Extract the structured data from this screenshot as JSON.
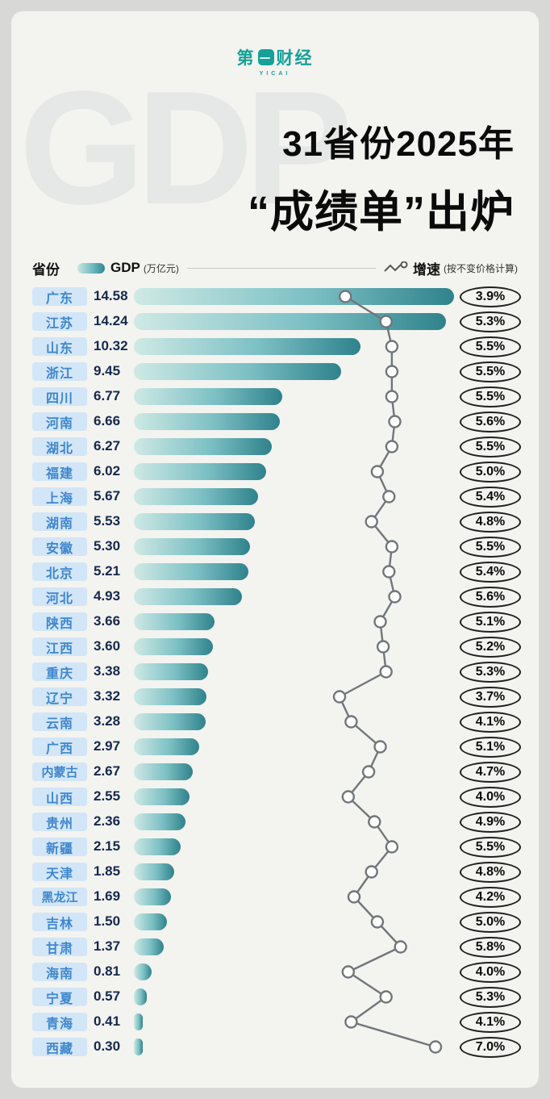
{
  "logo": {
    "prefix": "第",
    "box": "一",
    "suffix": "财经",
    "sub": "YICAI",
    "color": "#17a098"
  },
  "watermark": "GDP",
  "title": {
    "line1": "31省份2025年",
    "line2": "“成绩单”出炉"
  },
  "legend": {
    "province": "省份",
    "gdp": "GDP",
    "gdp_unit": "(万亿元)",
    "growth": "增速",
    "growth_note": "(按不变价格计算)"
  },
  "colors": {
    "bar_light": "#cfe9e5",
    "bar_dark": "#2f828c",
    "label_bg": "#d2e6f8",
    "label_text": "#3f86cc",
    "value_text": "#16294d",
    "line": "#71767b"
  },
  "chart_data": {
    "type": "bar+line",
    "title": "31省份2025年“成绩单”出炉",
    "bar_series_name": "GDP (万亿元)",
    "line_series_name": "增速 (按不变价格计算)",
    "growth_axis_range": [
      3.7,
      7.0
    ],
    "provinces": [
      {
        "name": "广东",
        "gdp": 14.58,
        "growth": 3.9
      },
      {
        "name": "江苏",
        "gdp": 14.24,
        "growth": 5.3
      },
      {
        "name": "山东",
        "gdp": 10.32,
        "growth": 5.5
      },
      {
        "name": "浙江",
        "gdp": 9.45,
        "growth": 5.5
      },
      {
        "name": "四川",
        "gdp": 6.77,
        "growth": 5.5
      },
      {
        "name": "河南",
        "gdp": 6.66,
        "growth": 5.6
      },
      {
        "name": "湖北",
        "gdp": 6.27,
        "growth": 5.5
      },
      {
        "name": "福建",
        "gdp": 6.02,
        "growth": 5.0
      },
      {
        "name": "上海",
        "gdp": 5.67,
        "growth": 5.4
      },
      {
        "name": "湖南",
        "gdp": 5.53,
        "growth": 4.8
      },
      {
        "name": "安徽",
        "gdp": 5.3,
        "growth": 5.5
      },
      {
        "name": "北京",
        "gdp": 5.21,
        "growth": 5.4
      },
      {
        "name": "河北",
        "gdp": 4.93,
        "growth": 5.6
      },
      {
        "name": "陕西",
        "gdp": 3.66,
        "growth": 5.1
      },
      {
        "name": "江西",
        "gdp": 3.6,
        "growth": 5.2
      },
      {
        "name": "重庆",
        "gdp": 3.38,
        "growth": 5.3
      },
      {
        "name": "辽宁",
        "gdp": 3.32,
        "growth": 3.7
      },
      {
        "name": "云南",
        "gdp": 3.28,
        "growth": 4.1
      },
      {
        "name": "广西",
        "gdp": 2.97,
        "growth": 5.1
      },
      {
        "name": "内蒙古",
        "gdp": 2.67,
        "growth": 4.7
      },
      {
        "name": "山西",
        "gdp": 2.55,
        "growth": 4.0
      },
      {
        "name": "贵州",
        "gdp": 2.36,
        "growth": 4.9
      },
      {
        "name": "新疆",
        "gdp": 2.15,
        "growth": 5.5
      },
      {
        "name": "天津",
        "gdp": 1.85,
        "growth": 4.8
      },
      {
        "name": "黑龙江",
        "gdp": 1.69,
        "growth": 4.2
      },
      {
        "name": "吉林",
        "gdp": 1.5,
        "growth": 5.0
      },
      {
        "name": "甘肃",
        "gdp": 1.37,
        "growth": 5.8
      },
      {
        "name": "海南",
        "gdp": 0.81,
        "growth": 4.0
      },
      {
        "name": "宁夏",
        "gdp": 0.57,
        "growth": 5.3
      },
      {
        "name": "青海",
        "gdp": 0.41,
        "growth": 4.1
      },
      {
        "name": "西藏",
        "gdp": 0.3,
        "growth": 7.0
      }
    ]
  }
}
